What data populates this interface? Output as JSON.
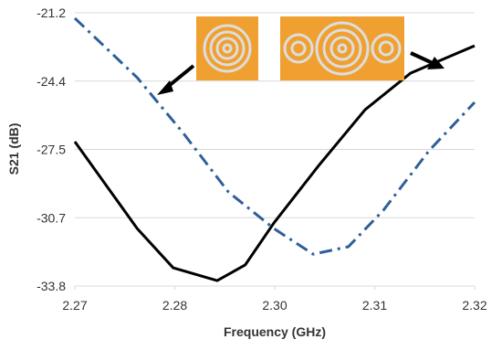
{
  "chart_data": {
    "type": "line",
    "x_label": "Frequency (GHz)",
    "y_label": "S21 (dB)",
    "xlim": [
      2.27,
      2.32
    ],
    "xticks": [
      2.27,
      {
        "value": 2.2825,
        "label": "2.28"
      },
      {
        "value": 2.295,
        "label": "2.30"
      },
      {
        "value": 2.3075,
        "label": "2.31"
      },
      2.32
    ],
    "ylim": [
      -33.8,
      -21.2
    ],
    "yticks": [
      -33.8,
      {
        "value": -30.65,
        "label": "-30.7"
      },
      -27.5,
      {
        "value": -24.35,
        "label": "-24.4"
      },
      -21.2
    ],
    "grid": true,
    "series": [
      {
        "color": "#000000",
        "dash": "solid",
        "x": [
          2.27,
          2.2778,
          2.2823,
          2.2878,
          2.2913,
          2.2949,
          2.3006,
          2.3063,
          2.312,
          2.32
        ],
        "values": [
          -27.14,
          -31.15,
          -32.96,
          -33.55,
          -32.83,
          -30.89,
          -28.2,
          -25.67,
          -23.98,
          -22.72
        ]
      },
      {
        "color": "#2e5f9a",
        "dash": "dashdot",
        "x": [
          2.27,
          2.2778,
          2.2835,
          2.2892,
          2.2949,
          2.2998,
          2.3042,
          2.3086,
          2.3143,
          2.32
        ],
        "values": [
          -21.45,
          -24.19,
          -26.72,
          -29.46,
          -31.15,
          -32.33,
          -31.99,
          -30.3,
          -27.56,
          -25.33
        ]
      }
    ]
  }
}
